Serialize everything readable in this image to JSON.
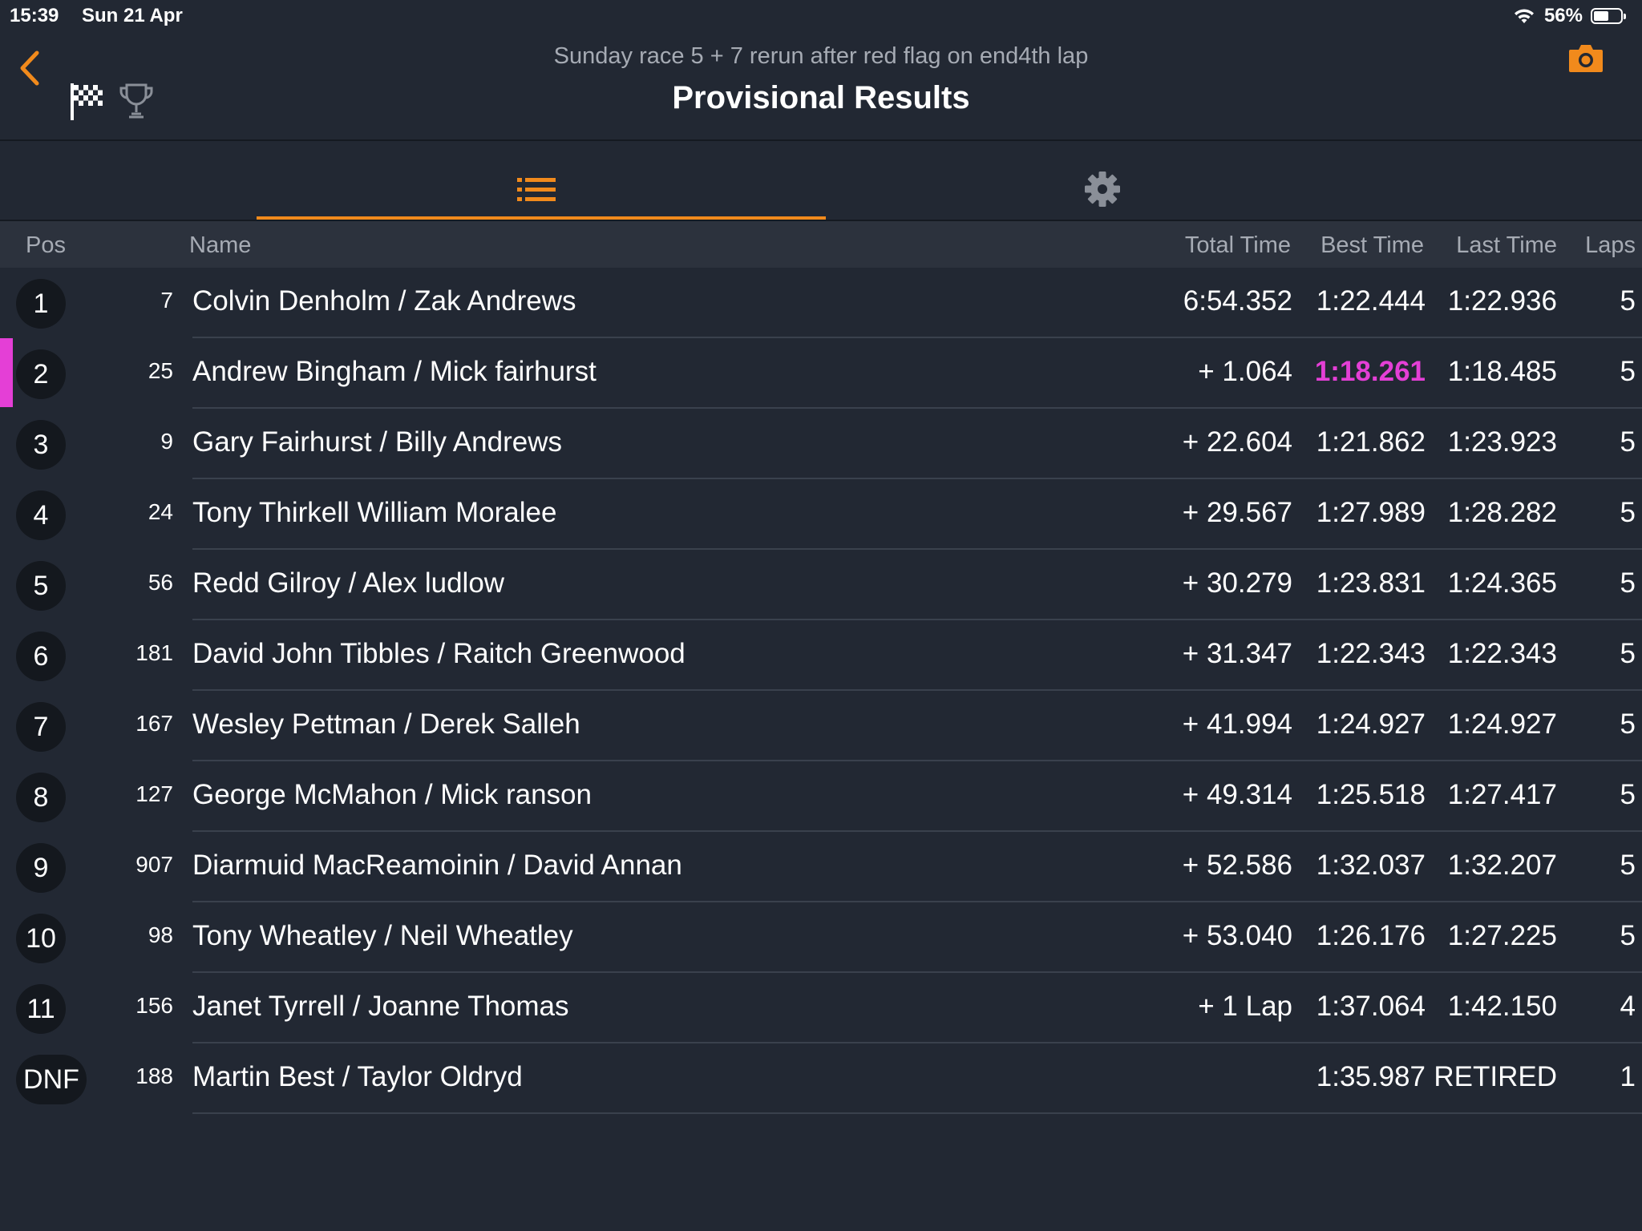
{
  "status_bar": {
    "time": "15:39",
    "date": "Sun 21 Apr",
    "battery": "56%",
    "battery_level": 0.56
  },
  "header": {
    "subtitle": "Sunday race 5 + 7 rerun after red flag on end4th lap",
    "title": "Provisional Results"
  },
  "colors": {
    "accent": "#f18a1c",
    "fastest": "#e43fd6",
    "background": "#222833"
  },
  "columns": {
    "pos": "Pos",
    "name": "Name",
    "total": "Total Time",
    "best": "Best Time",
    "last": "Last Time",
    "laps": "Laps"
  },
  "rows": [
    {
      "pos": "1",
      "num": "7",
      "name": "Colvin Denholm / Zak Andrews",
      "total": "6:54.352",
      "best": "1:22.444",
      "last": "1:22.936",
      "laps": "5"
    },
    {
      "pos": "2",
      "num": "25",
      "name": "Andrew Bingham / Mick fairhurst",
      "total": "+ 1.064",
      "best": "1:18.261",
      "last": "1:18.485",
      "laps": "5",
      "fastest": true
    },
    {
      "pos": "3",
      "num": "9",
      "name": "Gary Fairhurst / Billy Andrews",
      "total": "+ 22.604",
      "best": "1:21.862",
      "last": "1:23.923",
      "laps": "5"
    },
    {
      "pos": "4",
      "num": "24",
      "name": "Tony Thirkell William Moralee",
      "total": "+ 29.567",
      "best": "1:27.989",
      "last": "1:28.282",
      "laps": "5"
    },
    {
      "pos": "5",
      "num": "56",
      "name": "Redd Gilroy / Alex ludlow",
      "total": "+ 30.279",
      "best": "1:23.831",
      "last": "1:24.365",
      "laps": "5"
    },
    {
      "pos": "6",
      "num": "181",
      "name": "David John Tibbles / Raitch Greenwood",
      "total": "+ 31.347",
      "best": "1:22.343",
      "last": "1:22.343",
      "laps": "5"
    },
    {
      "pos": "7",
      "num": "167",
      "name": "Wesley Pettman / Derek Salleh",
      "total": "+ 41.994",
      "best": "1:24.927",
      "last": "1:24.927",
      "laps": "5"
    },
    {
      "pos": "8",
      "num": "127",
      "name": "George McMahon / Mick ranson",
      "total": "+ 49.314",
      "best": "1:25.518",
      "last": "1:27.417",
      "laps": "5"
    },
    {
      "pos": "9",
      "num": "907",
      "name": "Diarmuid MacReamoinin / David Annan",
      "total": "+ 52.586",
      "best": "1:32.037",
      "last": "1:32.207",
      "laps": "5"
    },
    {
      "pos": "10",
      "num": "98",
      "name": "Tony Wheatley / Neil Wheatley",
      "total": "+ 53.040",
      "best": "1:26.176",
      "last": "1:27.225",
      "laps": "5"
    },
    {
      "pos": "11",
      "num": "156",
      "name": "Janet Tyrrell / Joanne Thomas",
      "total": "+ 1 Lap",
      "best": "1:37.064",
      "last": "1:42.150",
      "laps": "4"
    },
    {
      "pos": "DNF",
      "num": "188",
      "name": "Martin Best / Taylor Oldryd",
      "total": "",
      "best": "1:35.987",
      "last": "RETIRED",
      "laps": "1"
    }
  ]
}
